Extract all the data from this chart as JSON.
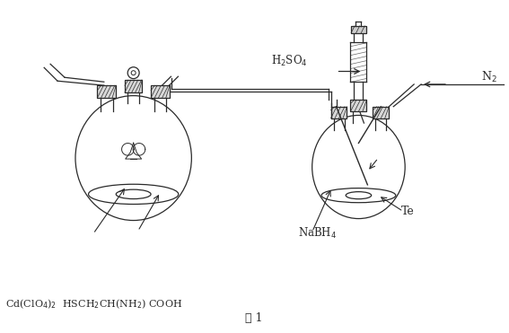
{
  "background_color": "#ffffff",
  "line_color": "#2a2a2a",
  "label_h2so4": "H$_2$SO$_4$",
  "label_n2": "N$_2$",
  "label_nabh4": "NaBH$_4$",
  "label_te": "Te",
  "label_cd": "Cd(ClO$_4$)$_2$  HSCH$_2$CH(NH$_2$) COOH",
  "label_fig": "图 1",
  "figwidth": 5.67,
  "figheight": 3.71,
  "dpi": 100
}
